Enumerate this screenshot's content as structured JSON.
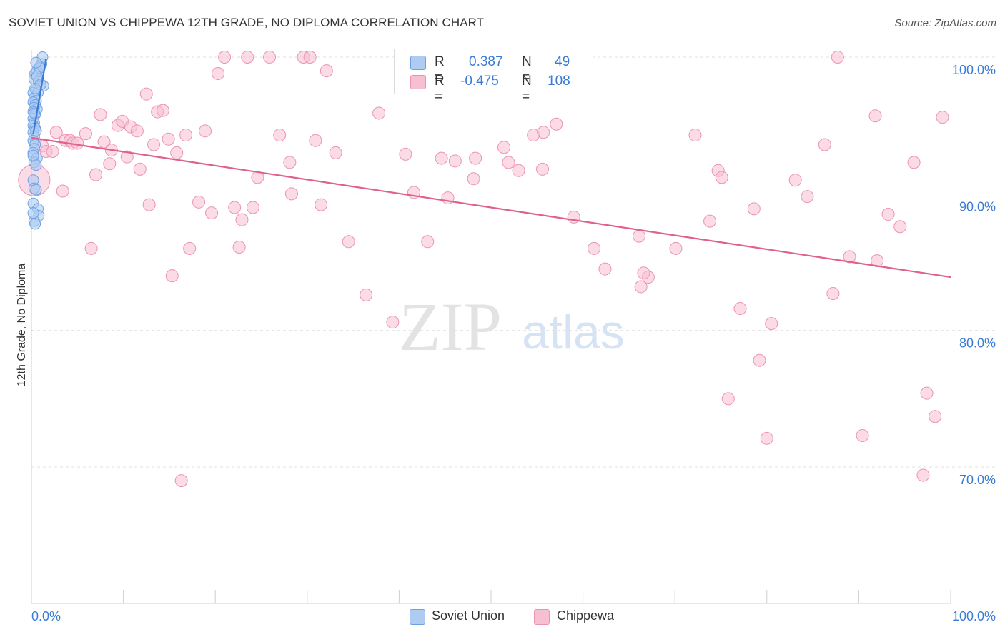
{
  "header": {
    "title": "SOVIET UNION VS CHIPPEWA 12TH GRADE, NO DIPLOMA CORRELATION CHART",
    "source": "Source: ZipAtlas.com"
  },
  "watermark": {
    "zip": "ZIP",
    "atlas": "atlas"
  },
  "colors": {
    "blue": "#3a7bd5",
    "blue_fill": "#aecbf2",
    "blue_stroke": "#6fa0e3",
    "pink": "#e0608e",
    "pink_fill": "#f7c0d2",
    "pink_stroke": "#eb93b3",
    "grid": "#e2e2e2",
    "axis_text": "#3a7bd5"
  },
  "legend_top": {
    "rows": [
      {
        "r_label": "R =",
        "r_value": "0.387",
        "n_label": "N =",
        "n_value": "49",
        "series": "soviet"
      },
      {
        "r_label": "R =",
        "r_value": "-0.475",
        "n_label": "N =",
        "n_value": "108",
        "series": "chippewa"
      }
    ]
  },
  "legend_bottom": {
    "soviet": "Soviet Union",
    "chippewa": "Chippewa"
  },
  "chart_data": {
    "type": "scatter",
    "title": "SOVIET UNION VS CHIPPEWA 12TH GRADE, NO DIPLOMA CORRELATION CHART",
    "xlabel": "",
    "ylabel": "12th Grade, No Diploma",
    "xlim": [
      0,
      100
    ],
    "ylim": [
      60,
      100
    ],
    "x_tick_labels": [
      "0.0%",
      "100.0%"
    ],
    "y_ticks": [
      70,
      80,
      90,
      100
    ],
    "y_tick_labels": [
      "70.0%",
      "80.0%",
      "90.0%",
      "100.0%"
    ],
    "grid": true,
    "series": [
      {
        "name": "Soviet Union",
        "color": "#3a7bd5",
        "trendline": {
          "x": [
            0.2,
            1.6
          ],
          "y": [
            94.4,
            99.9
          ]
        },
        "points": [
          [
            1.2,
            100
          ],
          [
            1.1,
            99.5
          ],
          [
            0.9,
            99.3
          ],
          [
            0.6,
            99.0
          ],
          [
            0.4,
            98.8
          ],
          [
            0.3,
            98.4
          ],
          [
            0.8,
            98.2
          ],
          [
            1.3,
            97.9
          ],
          [
            0.5,
            97.6
          ],
          [
            0.2,
            97.4
          ],
          [
            0.7,
            97.4
          ],
          [
            0.3,
            97.0
          ],
          [
            0.5,
            96.8
          ],
          [
            0.2,
            96.7
          ],
          [
            0.4,
            96.5
          ],
          [
            0.3,
            96.3
          ],
          [
            0.6,
            96.2
          ],
          [
            0.2,
            96.0
          ],
          [
            0.4,
            95.8
          ],
          [
            0.2,
            95.5
          ],
          [
            0.3,
            95.2
          ],
          [
            0.2,
            95.0
          ],
          [
            0.4,
            94.8
          ],
          [
            0.2,
            94.5
          ],
          [
            0.3,
            94.2
          ],
          [
            0.2,
            93.9
          ],
          [
            0.4,
            93.6
          ],
          [
            0.3,
            93.3
          ],
          [
            0.2,
            93.0
          ],
          [
            0.6,
            92.6
          ],
          [
            0.3,
            92.3
          ],
          [
            0.5,
            92.1
          ],
          [
            0.2,
            91.0
          ],
          [
            0.3,
            90.4
          ],
          [
            0.5,
            90.3
          ],
          [
            0.2,
            89.3
          ],
          [
            0.7,
            88.9
          ],
          [
            0.8,
            88.4
          ],
          [
            0.3,
            88.0
          ],
          [
            0.4,
            87.8
          ],
          [
            0.2,
            88.6
          ],
          [
            0.9,
            99.2
          ],
          [
            0.5,
            99.6
          ],
          [
            0.6,
            98.6
          ],
          [
            1.0,
            98.0
          ],
          [
            0.4,
            97.7
          ],
          [
            0.3,
            95.9
          ],
          [
            0.5,
            94.6
          ],
          [
            0.2,
            92.8
          ]
        ]
      },
      {
        "name": "Chippewa",
        "color": "#e0608e",
        "trendline": {
          "x": [
            0,
            100
          ],
          "y": [
            94.1,
            83.9
          ]
        },
        "points": [
          [
            0.3,
            91.0
          ],
          [
            1.2,
            93.5
          ],
          [
            1.6,
            93.1
          ],
          [
            2.3,
            93.1
          ],
          [
            2.7,
            94.5
          ],
          [
            3.4,
            90.2
          ],
          [
            3.7,
            93.9
          ],
          [
            4.2,
            93.9
          ],
          [
            4.5,
            93.7
          ],
          [
            5.0,
            93.7
          ],
          [
            5.9,
            94.4
          ],
          [
            6.5,
            86.0
          ],
          [
            7.0,
            91.4
          ],
          [
            7.5,
            95.8
          ],
          [
            7.9,
            93.8
          ],
          [
            8.5,
            92.2
          ],
          [
            8.7,
            93.2
          ],
          [
            9.4,
            95.0
          ],
          [
            9.9,
            95.3
          ],
          [
            10.4,
            92.7
          ],
          [
            10.8,
            94.9
          ],
          [
            11.5,
            94.6
          ],
          [
            11.8,
            91.8
          ],
          [
            12.5,
            97.3
          ],
          [
            12.8,
            89.2
          ],
          [
            13.3,
            93.6
          ],
          [
            13.7,
            96.0
          ],
          [
            14.3,
            96.1
          ],
          [
            14.9,
            94.0
          ],
          [
            15.3,
            84.0
          ],
          [
            15.8,
            93.0
          ],
          [
            16.3,
            69.0
          ],
          [
            16.8,
            94.3
          ],
          [
            17.2,
            86.0
          ],
          [
            18.2,
            89.4
          ],
          [
            18.9,
            94.6
          ],
          [
            19.6,
            88.6
          ],
          [
            20.3,
            98.8
          ],
          [
            21.0,
            100
          ],
          [
            22.1,
            89.0
          ],
          [
            22.6,
            86.1
          ],
          [
            22.9,
            88.1
          ],
          [
            23.5,
            100
          ],
          [
            24.1,
            89.0
          ],
          [
            24.6,
            91.2
          ],
          [
            25.9,
            100
          ],
          [
            27.0,
            94.3
          ],
          [
            28.1,
            92.3
          ],
          [
            28.3,
            90.0
          ],
          [
            29.6,
            100
          ],
          [
            30.3,
            100
          ],
          [
            30.9,
            93.9
          ],
          [
            31.5,
            89.2
          ],
          [
            32.1,
            99.0
          ],
          [
            33.1,
            93.0
          ],
          [
            34.5,
            86.5
          ],
          [
            36.4,
            82.6
          ],
          [
            37.8,
            95.9
          ],
          [
            39.3,
            80.6
          ],
          [
            40.7,
            92.9
          ],
          [
            41.6,
            90.1
          ],
          [
            43.1,
            86.5
          ],
          [
            44.6,
            92.6
          ],
          [
            45.3,
            89.7
          ],
          [
            46.1,
            92.4
          ],
          [
            48.1,
            91.1
          ],
          [
            48.3,
            92.6
          ],
          [
            51.4,
            93.4
          ],
          [
            51.9,
            92.3
          ],
          [
            53.0,
            91.7
          ],
          [
            54.6,
            94.3
          ],
          [
            55.6,
            91.8
          ],
          [
            57.1,
            95.1
          ],
          [
            59.0,
            88.3
          ],
          [
            61.2,
            86.0
          ],
          [
            62.4,
            84.5
          ],
          [
            66.1,
            86.9
          ],
          [
            66.3,
            83.2
          ],
          [
            67.1,
            83.9
          ],
          [
            70.1,
            86.0
          ],
          [
            72.2,
            94.3
          ],
          [
            73.8,
            88.0
          ],
          [
            74.7,
            91.7
          ],
          [
            75.8,
            75.0
          ],
          [
            77.1,
            81.6
          ],
          [
            78.6,
            88.9
          ],
          [
            79.2,
            77.8
          ],
          [
            80.0,
            72.1
          ],
          [
            83.1,
            91.0
          ],
          [
            84.4,
            89.8
          ],
          [
            86.3,
            93.6
          ],
          [
            87.2,
            82.7
          ],
          [
            87.7,
            100
          ],
          [
            89.0,
            85.4
          ],
          [
            90.4,
            72.3
          ],
          [
            91.8,
            95.7
          ],
          [
            92.0,
            85.1
          ],
          [
            93.2,
            88.5
          ],
          [
            94.5,
            87.6
          ],
          [
            96.0,
            92.3
          ],
          [
            97.0,
            69.4
          ],
          [
            97.4,
            75.4
          ],
          [
            98.3,
            73.7
          ],
          [
            99.1,
            95.6
          ],
          [
            80.5,
            80.5
          ],
          [
            75.1,
            91.2
          ],
          [
            66.6,
            84.2
          ],
          [
            55.7,
            94.5
          ]
        ]
      }
    ]
  }
}
